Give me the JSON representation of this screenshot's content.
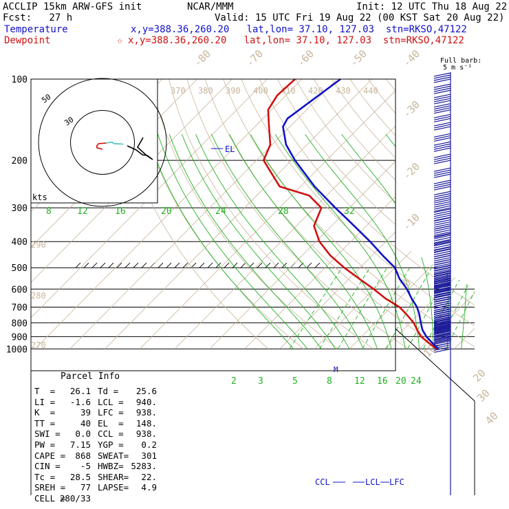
{
  "header": {
    "line1_left": "ACCLIP 15km ARW-GFS init",
    "line1_mid": "NCAR/MMM",
    "line1_right": "Init: 12 UTC Thu 18 Aug 22",
    "line2_left": "Fcst:   27 h",
    "line2_right": "Valid: 15 UTC Fri 19 Aug 22 (00 KST Sat 20 Aug 22)",
    "temp_label": "Temperature",
    "temp_info": "x,y=388.36,260.20   lat,lon= 37.10, 127.03  stn=RKSO,47122",
    "dew_label": "Dewpoint",
    "dew_marker": "☆",
    "dew_info": "x,y=388.36,260.20   lat,lon= 37.10, 127.03  stn=RKSO,47122"
  },
  "barb_legend": {
    "line1": "Full barb:",
    "line2": "5 m s⁻¹"
  },
  "hodograph": {
    "unit_label": "kts",
    "ring_labels": [
      "50",
      "30"
    ]
  },
  "parcel_info": {
    "title": "Parcel Info",
    "rows": [
      [
        "T  =",
        "26.1",
        "Td =",
        "25.6"
      ],
      [
        "LI =",
        "-1.6",
        "LCL =",
        "940."
      ],
      [
        "K  =",
        "39",
        "LFC =",
        "938."
      ],
      [
        "TT =",
        "40",
        "EL  =",
        "148."
      ],
      [
        "SWI =",
        "0.0",
        "CCL =",
        "938."
      ],
      [
        "PW =",
        "7.15",
        "YGP =",
        "0.2"
      ],
      [
        "CAPE =",
        "868",
        "SWEAT=",
        "301"
      ],
      [
        "CIN =",
        "-5",
        "HWBZ=",
        "5283."
      ],
      [
        "Tc =",
        "28.5",
        "SHEAR=",
        "22."
      ],
      [
        "SREH =",
        "77",
        "LAPSE=",
        "4.9"
      ],
      [
        "CELL =",
        "280/33",
        "",
        ""
      ]
    ]
  },
  "markers": {
    "el": "EL",
    "m": "M",
    "ccl": "CCL",
    "lcl": "LCL",
    "lfc": "LFC"
  },
  "colors": {
    "temperature": "#d01010",
    "dewpoint": "#1010c8",
    "isotherm": "#c8b49a",
    "mixing_ratio": "#20b020",
    "adiabat": "#20b020",
    "barb": "#1a1a9a",
    "text": "#000000"
  },
  "chart_data": {
    "type": "skew-t log-p sounding",
    "pressure_levels": [
      100,
      200,
      300,
      400,
      500,
      600,
      700,
      800,
      900,
      1000
    ],
    "ylim": [
      1000,
      100
    ],
    "ytick_labels": [
      "100",
      "200",
      "300",
      "400",
      "500",
      "600",
      "700",
      "800",
      "900",
      "1000"
    ],
    "isotherm_labels": [
      "-80",
      "-70",
      "-60",
      "-50",
      "-40",
      "-30",
      "-20",
      "-10",
      "0",
      "10",
      "20",
      "30",
      "40"
    ],
    "theta_labels_top": [
      "370",
      "380",
      "390",
      "400",
      "410",
      "420",
      "430",
      "440"
    ],
    "theta_labels_left": [
      "290",
      "280",
      "270"
    ],
    "theta_e_labels": [
      "8",
      "12",
      "16",
      "20",
      "24",
      "28",
      "32"
    ],
    "mixing_ratio_labels": [
      "2",
      "3",
      "5",
      "8",
      "12",
      "16",
      "20",
      "24"
    ],
    "series": [
      {
        "name": "Temperature",
        "values": [
          [
            1000,
            25.5
          ],
          [
            950,
            22.0
          ],
          [
            900,
            18.5
          ],
          [
            850,
            15.5
          ],
          [
            800,
            13.0
          ],
          [
            750,
            10.5
          ],
          [
            700,
            7.5
          ],
          [
            650,
            3.5
          ],
          [
            600,
            -0.5
          ],
          [
            550,
            -5.5
          ],
          [
            500,
            -10.0
          ],
          [
            450,
            -17.0
          ],
          [
            400,
            -24.5
          ],
          [
            350,
            -33.5
          ],
          [
            300,
            -44.0
          ],
          [
            250,
            -56.0
          ],
          [
            200,
            -69.0
          ],
          [
            175,
            -76.0
          ],
          [
            150,
            -82.0
          ],
          [
            140,
            -83.0
          ],
          [
            100,
            -79.0
          ]
        ]
      },
      {
        "name": "Dewpoint",
        "values": [
          [
            1000,
            25.0
          ],
          [
            950,
            21.0
          ],
          [
            900,
            17.0
          ],
          [
            850,
            14.0
          ],
          [
            800,
            11.0
          ],
          [
            750,
            7.0
          ],
          [
            700,
            2.5
          ],
          [
            650,
            -4.0
          ],
          [
            600,
            -10.0
          ],
          [
            550,
            -17.0
          ],
          [
            500,
            -24.5
          ],
          [
            450,
            -32.0
          ],
          [
            400,
            -39.0
          ],
          [
            350,
            -45.0
          ],
          [
            300,
            -48.0
          ],
          [
            270,
            -55.0
          ],
          [
            250,
            -66.0
          ],
          [
            200,
            -78.0
          ],
          [
            175,
            -80.5
          ],
          [
            150,
            -86.0
          ],
          [
            130,
            -91.0
          ],
          [
            115,
            -92.5
          ],
          [
            100,
            -92.0
          ]
        ]
      }
    ],
    "hodograph_trace": [
      [
        0,
        0
      ],
      [
        -1.5,
        1.5
      ],
      [
        -1.5,
        3.5
      ],
      [
        -1.0,
        5.5
      ],
      [
        1.0,
        6.0
      ],
      [
        2.5,
        7.0
      ],
      [
        3.0,
        5.5
      ],
      [
        5.5,
        5.0
      ],
      [
        7.5,
        4.0
      ],
      [
        9.0,
        3.5
      ],
      [
        10.5,
        5.0
      ],
      [
        11.5,
        6.0
      ],
      [
        12.5,
        8.0
      ]
    ],
    "hodograph_range_kts": 60,
    "wind_barbs": [
      [
        1000,
        4
      ],
      [
        950,
        4
      ],
      [
        925,
        4
      ],
      [
        900,
        5
      ],
      [
        875,
        5
      ],
      [
        850,
        5
      ],
      [
        825,
        5
      ],
      [
        800,
        5
      ],
      [
        775,
        6
      ],
      [
        750,
        6
      ],
      [
        725,
        6
      ],
      [
        700,
        6
      ],
      [
        675,
        6
      ],
      [
        650,
        6
      ],
      [
        625,
        6
      ],
      [
        600,
        6
      ],
      [
        575,
        5
      ],
      [
        550,
        5
      ],
      [
        525,
        5
      ],
      [
        500,
        5
      ],
      [
        475,
        5
      ],
      [
        450,
        5
      ],
      [
        425,
        5
      ],
      [
        400,
        5
      ],
      [
        375,
        5
      ],
      [
        350,
        5
      ],
      [
        325,
        5
      ],
      [
        300,
        5
      ],
      [
        275,
        4
      ],
      [
        250,
        4
      ],
      [
        225,
        4
      ],
      [
        200,
        4
      ],
      [
        180,
        4
      ],
      [
        165,
        3
      ],
      [
        150,
        3
      ],
      [
        140,
        3
      ],
      [
        130,
        4
      ],
      [
        120,
        4
      ],
      [
        110,
        4
      ],
      [
        100,
        4
      ]
    ]
  }
}
